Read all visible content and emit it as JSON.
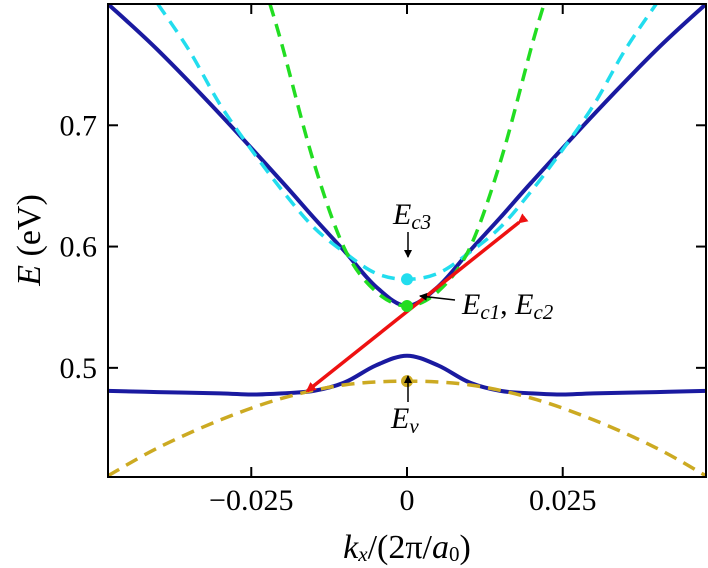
{
  "chart_data": {
    "type": "line",
    "xlabel": {
      "k": "k",
      "k_sub": "x",
      "mid": "/(2π/",
      "a": "a",
      "a_sub": "0",
      "end": ")"
    },
    "ylabel": {
      "e": "E",
      "unit": " (eV)"
    },
    "xlim": [
      -0.048,
      0.048
    ],
    "ylim": [
      0.41,
      0.8
    ],
    "x_ticks": [
      -0.025,
      0,
      0.025
    ],
    "x_tick_labels": [
      "−0.025",
      "0",
      "0.025"
    ],
    "y_ticks": [
      0.5,
      0.6,
      0.7
    ],
    "y_tick_labels": [
      "0.5",
      "0.6",
      "0.7"
    ],
    "colors": {
      "band": "#1a1aa0",
      "cyan": "#22ddee",
      "green": "#22dd22",
      "gold": "#ccaa22",
      "arrow": "#ee1111"
    },
    "series": [
      {
        "style": "solid",
        "color": "#1a1aa0",
        "x": [
          -0.048,
          -0.04,
          -0.03,
          -0.02,
          -0.015,
          -0.01,
          -0.005,
          0,
          0.005,
          0.01,
          0.015,
          0.02,
          0.03,
          0.04,
          0.048
        ],
        "y": [
          0.8,
          0.762,
          0.709,
          0.653,
          0.624,
          0.596,
          0.567,
          0.551,
          0.567,
          0.596,
          0.624,
          0.653,
          0.709,
          0.762,
          0.8
        ]
      },
      {
        "style": "solid",
        "color": "#1a1aa0",
        "x": [
          -0.048,
          -0.04,
          -0.03,
          -0.025,
          -0.02,
          -0.015,
          -0.01,
          -0.005,
          0,
          0.005,
          0.01,
          0.015,
          0.02,
          0.025,
          0.03,
          0.04,
          0.048
        ],
        "y": [
          0.481,
          0.48,
          0.479,
          0.478,
          0.479,
          0.481,
          0.488,
          0.502,
          0.51,
          0.502,
          0.488,
          0.481,
          0.479,
          0.478,
          0.479,
          0.48,
          0.481
        ]
      },
      {
        "style": "dashed",
        "color": "#22ddee",
        "x": [
          -0.04,
          -0.035,
          -0.03,
          -0.025,
          -0.02,
          -0.015,
          -0.01,
          -0.005,
          0,
          0.005,
          0.01,
          0.015,
          0.02,
          0.025,
          0.03,
          0.035,
          0.04
        ],
        "y": [
          0.8,
          0.762,
          0.717,
          0.68,
          0.646,
          0.616,
          0.595,
          0.578,
          0.573,
          0.578,
          0.595,
          0.616,
          0.646,
          0.68,
          0.717,
          0.762,
          0.8
        ]
      },
      {
        "style": "dashed",
        "color": "#22dd22",
        "x": [
          -0.022,
          -0.02,
          -0.015,
          -0.01,
          -0.005,
          0,
          0.005,
          0.01,
          0.015,
          0.02,
          0.022
        ],
        "y": [
          0.8,
          0.765,
          0.67,
          0.598,
          0.563,
          0.551,
          0.563,
          0.598,
          0.67,
          0.765,
          0.8
        ]
      },
      {
        "style": "dashed",
        "color": "#ccaa22",
        "x": [
          -0.048,
          -0.04,
          -0.03,
          -0.02,
          -0.01,
          0,
          0.01,
          0.02,
          0.03,
          0.04,
          0.048
        ],
        "y": [
          0.411,
          0.434,
          0.457,
          0.475,
          0.486,
          0.489,
          0.486,
          0.475,
          0.457,
          0.434,
          0.411
        ]
      }
    ],
    "points": [
      {
        "x": 0,
        "y": 0.573,
        "color": "#22ddee"
      },
      {
        "x": 0,
        "y": 0.551,
        "color": "#22dd22"
      },
      {
        "x": 0,
        "y": 0.489,
        "color": "#ccaa22"
      }
    ],
    "transition_arrow": {
      "from": [
        0.018,
        0.62
      ],
      "to": [
        -0.016,
        0.481
      ],
      "color": "#ee1111"
    },
    "annotations": {
      "ec3": {
        "main": "E",
        "sub": "c3"
      },
      "ec12": {
        "main1": "E",
        "sub1": "c1",
        "sep": ", ",
        "main2": "E",
        "sub2": "c2"
      },
      "ev": {
        "main": "E",
        "sub": "v"
      }
    }
  }
}
